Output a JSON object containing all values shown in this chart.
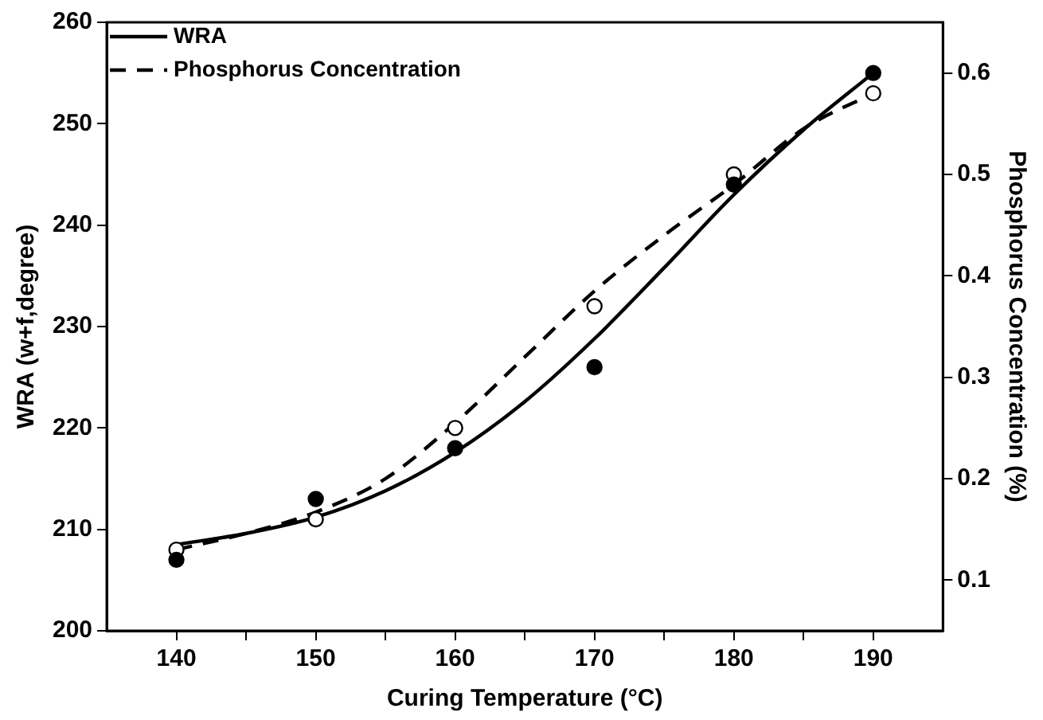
{
  "chart_data": {
    "type": "line",
    "xlabel": "Curing Temperature (°C)",
    "ylabel": "WRA (w+f,degree)",
    "y2label": "Phosphorus Concentration (%)",
    "xlim": [
      135,
      195
    ],
    "xticks": [
      140,
      {
        "value": 145,
        "label": null
      },
      150,
      {
        "value": 155,
        "label": null
      },
      160,
      {
        "value": 165,
        "label": null
      },
      170,
      {
        "value": 175,
        "label": null
      },
      180,
      {
        "value": 185,
        "label": null
      },
      190
    ],
    "ylim": [
      200,
      260
    ],
    "yticks": [
      200,
      210,
      220,
      230,
      240,
      250,
      260
    ],
    "y2lim": [
      0.05,
      0.65
    ],
    "y2ticks": [
      0.1,
      0.2,
      0.3,
      0.4,
      0.5,
      0.6
    ],
    "grid": false,
    "legend": "top left",
    "series": [
      {
        "type": "scatter",
        "marker": "circle",
        "color": "#000000",
        "x": [
          140,
          150,
          160,
          170,
          180,
          190
        ],
        "values": [
          207,
          213,
          218,
          226,
          244,
          255
        ]
      },
      {
        "type": "scatter",
        "marker": "circle",
        "color": "#ffffff",
        "axis": "y2",
        "x": [
          140,
          150,
          160,
          170,
          180,
          190
        ],
        "values": [
          0.13,
          0.16,
          0.25,
          0.37,
          0.5,
          0.58
        ]
      },
      {
        "name": "WRA",
        "color": "#000000",
        "line_style": "solid",
        "marker": "none",
        "x": [
          140,
          145,
          150,
          155,
          160,
          165,
          170,
          175,
          180,
          185,
          190
        ],
        "values": [
          208.5,
          209.6,
          211.2,
          213.8,
          217.6,
          222.6,
          228.8,
          235.8,
          243,
          249.4,
          255
        ]
      },
      {
        "name": "Phosphorus Concentration",
        "color": "#000000",
        "line_style": "dashed",
        "marker": "none",
        "axis": "y2",
        "x": [
          140,
          145,
          150,
          155,
          160,
          165,
          170,
          175,
          180,
          185,
          190
        ],
        "values": [
          0.13,
          0.146,
          0.167,
          0.2,
          0.255,
          0.32,
          0.385,
          0.44,
          0.49,
          0.545,
          0.58
        ]
      }
    ]
  }
}
